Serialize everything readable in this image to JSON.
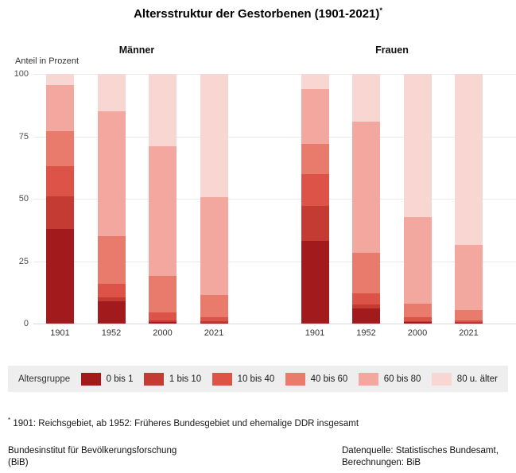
{
  "title": {
    "text": "Altersstruktur der Gestorbenen (1901-2021)",
    "footnote_marker": "*"
  },
  "axis": {
    "unit_label": "Anteil in Prozent",
    "yticks": [
      100,
      75,
      50,
      25,
      0
    ]
  },
  "legend": {
    "label": "Altersgruppe"
  },
  "footnote": {
    "marker": "*",
    "text": "1901: Reichsgebiet, ab 1952: Früheres Bundesgebiet und ehemalige DDR insgesamt"
  },
  "footer": {
    "left_line1": "Bundesinstitut für Bevölkerungsforschung",
    "left_line2": "(BiB)",
    "right_line1": "Datenquelle: Statistisches Bundesamt,",
    "right_line2": "Berechnungen: BiB"
  },
  "chart_data": {
    "type": "bar",
    "stacked": true,
    "title": "Altersstruktur der Gestorbenen (1901-2021)*",
    "ylabel": "Anteil in Prozent",
    "ylim": [
      0,
      100
    ],
    "grid": true,
    "legend_position": "bottom",
    "categories": [
      "1901",
      "1952",
      "2000",
      "2021"
    ],
    "age_groups": [
      "0 bis 1",
      "1 bis 10",
      "10 bis 40",
      "40 bis 60",
      "60 bis 80",
      "80 u. älter"
    ],
    "colors": [
      "#a21a1c",
      "#c33b32",
      "#de5348",
      "#e87b6c",
      "#f2a89f",
      "#f8d6d1"
    ],
    "panels": [
      {
        "label": "Männer",
        "series": [
          {
            "name": "0 bis 1",
            "values": [
              38,
              9,
              0.7,
              0.4
            ]
          },
          {
            "name": "1 bis 10",
            "values": [
              13,
              1.5,
              0.6,
              0.4
            ]
          },
          {
            "name": "10 bis 40",
            "values": [
              12,
              5.5,
              3.2,
              1.7
            ]
          },
          {
            "name": "40 bis 60",
            "values": [
              14,
              19,
              14.5,
              9
            ]
          },
          {
            "name": "60 bis 80",
            "values": [
              18.5,
              50,
              52,
              39
            ]
          },
          {
            "name": "80 u. älter",
            "values": [
              4.5,
              15,
              29,
              49.5
            ]
          }
        ]
      },
      {
        "label": "Frauen",
        "series": [
          {
            "name": "0 bis 1",
            "values": [
              33,
              6,
              0.5,
              0.3
            ]
          },
          {
            "name": "1 bis 10",
            "values": [
              14,
              1.5,
              0.4,
              0.2
            ]
          },
          {
            "name": "10 bis 40",
            "values": [
              13,
              4.5,
              1.6,
              0.8
            ]
          },
          {
            "name": "40 bis 60",
            "values": [
              12,
              16.5,
              5.5,
              4.2
            ]
          },
          {
            "name": "60 bis 80",
            "values": [
              22,
              52.5,
              34.8,
              26
            ]
          },
          {
            "name": "80 u. älter",
            "values": [
              6,
              19,
              57.2,
              68.5
            ]
          }
        ]
      }
    ]
  }
}
